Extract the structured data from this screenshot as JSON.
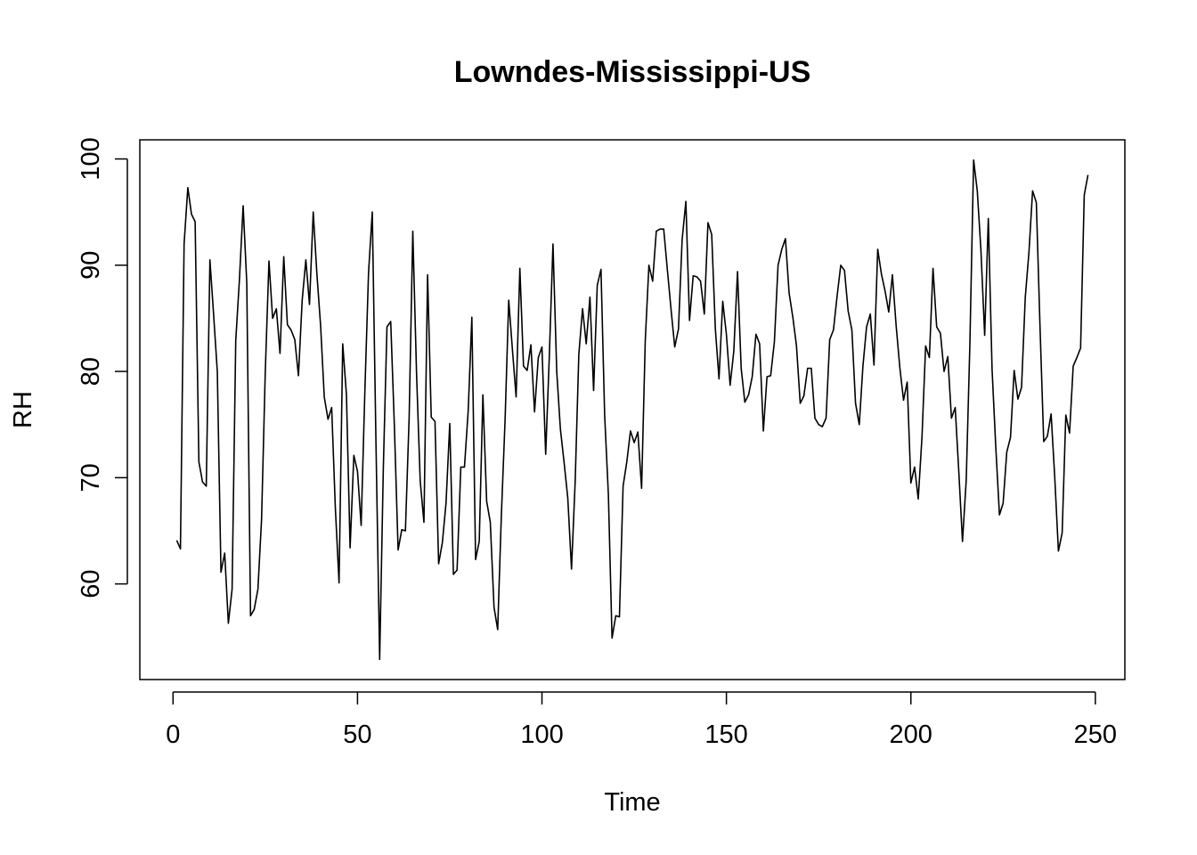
{
  "chart_data": {
    "type": "line",
    "title": "Lowndes-Mississippi-US",
    "xlabel": "Time",
    "ylabel": "RH",
    "xlim": [
      -9.0,
      258.0
    ],
    "ylim": [
      51.0,
      101.8
    ],
    "x_ticks": [
      0,
      50,
      100,
      150,
      200,
      250
    ],
    "y_ticks": [
      60,
      70,
      80,
      90,
      100
    ],
    "grid": false,
    "legend": "none",
    "line_color": "#000000",
    "x": [
      1,
      2,
      3,
      4,
      5,
      6,
      7,
      8,
      9,
      10,
      11,
      12,
      13,
      14,
      15,
      16,
      17,
      18,
      19,
      20,
      21,
      22,
      23,
      24,
      25,
      26,
      27,
      28,
      29,
      30,
      31,
      32,
      33,
      34,
      35,
      36,
      37,
      38,
      39,
      40,
      41,
      42,
      43,
      44,
      45,
      46,
      47,
      48,
      49,
      50,
      51,
      52,
      53,
      54,
      55,
      56,
      57,
      58,
      59,
      60,
      61,
      62,
      63,
      64,
      65,
      66,
      67,
      68,
      69,
      70,
      71,
      72,
      73,
      74,
      75,
      76,
      77,
      78,
      79,
      80,
      81,
      82,
      83,
      84,
      85,
      86,
      87,
      88,
      89,
      90,
      91,
      92,
      93,
      94,
      95,
      96,
      97,
      98,
      99,
      100,
      101,
      102,
      103,
      104,
      105,
      106,
      107,
      108,
      109,
      110,
      111,
      112,
      113,
      114,
      115,
      116,
      117,
      118,
      119,
      120,
      121,
      122,
      123,
      124,
      125,
      126,
      127,
      128,
      129,
      130,
      131,
      132,
      133,
      134,
      135,
      136,
      137,
      138,
      139,
      140,
      141,
      142,
      143,
      144,
      145,
      146,
      147,
      148,
      149,
      150,
      151,
      152,
      153,
      154,
      155,
      156,
      157,
      158,
      159,
      160,
      161,
      162,
      163,
      164,
      165,
      166,
      167,
      168,
      169,
      170,
      171,
      172,
      173,
      174,
      175,
      176,
      177,
      178,
      179,
      180,
      181,
      182,
      183,
      184,
      185,
      186,
      187,
      188,
      189,
      190,
      191,
      192,
      193,
      194,
      195,
      196,
      197,
      198,
      199,
      200,
      201,
      202,
      203,
      204,
      205,
      206,
      207,
      208,
      209,
      210,
      211,
      212,
      213,
      214,
      215,
      216,
      217,
      218,
      219,
      220,
      221,
      222,
      223,
      224,
      225,
      226,
      227,
      228,
      229,
      230,
      231,
      232,
      233,
      234,
      235,
      236,
      237,
      238,
      239,
      240,
      241,
      242,
      243,
      244,
      245,
      246,
      247,
      248
    ],
    "values": [
      64.1,
      63.3,
      92.0,
      97.3,
      94.8,
      94.1,
      71.5,
      69.6,
      69.2,
      90.5,
      85.4,
      80.0,
      61.1,
      62.9,
      56.3,
      59.5,
      82.9,
      88.6,
      95.6,
      88.3,
      57.0,
      57.6,
      59.5,
      66.1,
      79.8,
      90.4,
      85.0,
      85.9,
      81.7,
      90.8,
      84.4,
      83.9,
      83.0,
      79.6,
      86.7,
      90.5,
      86.3,
      95.0,
      89.2,
      84.3,
      77.6,
      75.5,
      76.6,
      67.2,
      60.1,
      82.6,
      77.8,
      63.4,
      72.1,
      70.6,
      65.5,
      78.2,
      89.3,
      95.0,
      73.5,
      52.9,
      70.9,
      84.2,
      84.7,
      74.9,
      63.2,
      65.1,
      65.0,
      75.7,
      93.2,
      79.8,
      69.7,
      65.8,
      89.1,
      75.7,
      75.3,
      61.9,
      63.9,
      67.6,
      75.1,
      60.9,
      61.3,
      71.0,
      71.0,
      76.3,
      85.1,
      62.3,
      64.0,
      77.8,
      67.8,
      65.8,
      57.8,
      55.7,
      66.4,
      75.4,
      86.7,
      82.0,
      77.6,
      89.7,
      80.5,
      80.1,
      82.5,
      76.2,
      81.3,
      82.3,
      72.2,
      81.5,
      92.0,
      80.0,
      74.6,
      71.4,
      68.1,
      61.4,
      69.6,
      81.6,
      85.9,
      82.6,
      87.0,
      78.2,
      88.1,
      89.6,
      75.9,
      68.4,
      54.9,
      57.0,
      56.9,
      69.2,
      71.5,
      74.4,
      73.3,
      74.3,
      69.0,
      82.9,
      90.0,
      88.5,
      93.2,
      93.4,
      93.4,
      89.5,
      85.8,
      82.3,
      84.0,
      92.4,
      96.0,
      84.8,
      89.0,
      88.9,
      88.5,
      85.4,
      94.0,
      92.9,
      84.0,
      79.3,
      86.6,
      83.5,
      78.7,
      81.9,
      89.4,
      80.3,
      77.1,
      77.8,
      79.5,
      83.5,
      82.6,
      74.4,
      79.5,
      79.6,
      82.8,
      90.0,
      91.5,
      92.5,
      87.4,
      85.1,
      82.4,
      77.0,
      77.7,
      80.3,
      80.3,
      75.6,
      75.0,
      74.8,
      75.6,
      83.0,
      83.9,
      87.1,
      90.0,
      89.5,
      85.7,
      83.9,
      77.0,
      75.0,
      80.5,
      84.2,
      85.4,
      80.6,
      91.5,
      89.2,
      87.6,
      85.6,
      89.1,
      84.3,
      80.4,
      77.3,
      79.0,
      69.5,
      71.0,
      68.0,
      73.8,
      82.4,
      81.3,
      89.7,
      84.2,
      83.6,
      80.0,
      81.4,
      75.6,
      76.6,
      70.5,
      64.0,
      69.8,
      82.6,
      99.9,
      97.0,
      91.4,
      83.4,
      94.4,
      80.2,
      73.0,
      66.5,
      67.6,
      72.4,
      73.8,
      80.1,
      77.4,
      78.5,
      87.0,
      91.2,
      97.0,
      95.9,
      84.3,
      73.4,
      73.9,
      76.0,
      70.0,
      63.1,
      64.8,
      75.9,
      74.2,
      80.5,
      81.3,
      82.2,
      96.6,
      98.5
    ]
  }
}
